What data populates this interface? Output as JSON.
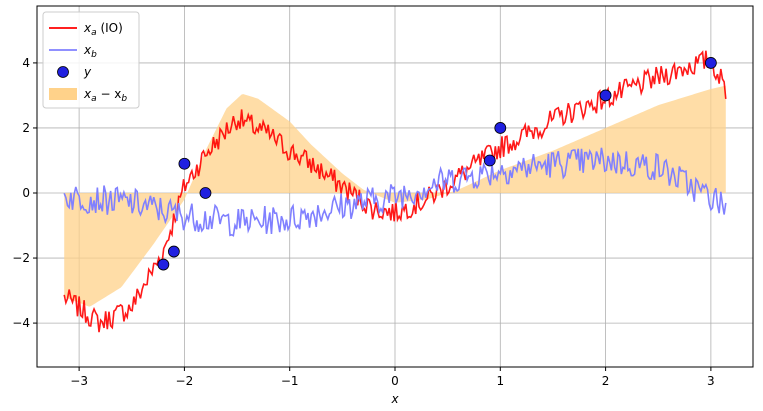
{
  "chart_data": {
    "type": "line",
    "xlabel": "x",
    "ylabel": "",
    "xlim": [
      -3.4,
      3.4
    ],
    "ylim": [
      -5.35,
      5.75
    ],
    "xticks": [
      -3,
      -2,
      -1,
      0,
      1,
      2,
      3
    ],
    "xtick_labels": [
      "−3",
      "−2",
      "−1",
      "0",
      "1",
      "2",
      "3"
    ],
    "yticks": [
      -4,
      -2,
      0,
      2,
      4
    ],
    "ytick_labels": [
      "−4",
      "−2",
      "0",
      "2",
      "4"
    ],
    "grid": true,
    "legend_placement": "top-left",
    "x_range": [
      -3.14159,
      3.14159
    ],
    "series": [
      {
        "name": "xa (IO)",
        "legend_main": "x",
        "legend_sub": "a",
        "legend_suffix": " (IO)",
        "color": "#ff0000",
        "kind": "line",
        "description_points": [
          [
            -3.14,
            -3.2
          ],
          [
            -2.8,
            -4.0
          ],
          [
            -2.5,
            -3.5
          ],
          [
            -2.2,
            -1.8
          ],
          [
            -2.0,
            0.2
          ],
          [
            -1.8,
            1.2
          ],
          [
            -1.5,
            2.3
          ],
          [
            -1.2,
            1.8
          ],
          [
            -1.0,
            1.3
          ],
          [
            -0.8,
            0.9
          ],
          [
            -0.5,
            0.2
          ],
          [
            -0.2,
            -0.5
          ],
          [
            0.0,
            -0.6
          ],
          [
            0.3,
            -0.2
          ],
          [
            0.6,
            0.5
          ],
          [
            1.0,
            1.4
          ],
          [
            1.3,
            1.9
          ],
          [
            1.6,
            2.4
          ],
          [
            2.0,
            2.9
          ],
          [
            2.3,
            3.3
          ],
          [
            2.7,
            3.8
          ],
          [
            3.0,
            4.1
          ],
          [
            3.14,
            3.2
          ]
        ],
        "noise_amp": 0.35
      },
      {
        "name": "xb",
        "legend_main": "x",
        "legend_sub": "b",
        "legend_suffix": "",
        "color": "#8080ff",
        "kind": "line",
        "description_points": [
          [
            -3.14,
            -0.1
          ],
          [
            -2.5,
            -0.3
          ],
          [
            -2.0,
            -0.7
          ],
          [
            -1.5,
            -0.9
          ],
          [
            -1.0,
            -0.8
          ],
          [
            -0.5,
            -0.4
          ],
          [
            0.0,
            -0.1
          ],
          [
            0.5,
            0.4
          ],
          [
            1.0,
            0.7
          ],
          [
            1.5,
            0.9
          ],
          [
            2.0,
            1.0
          ],
          [
            2.5,
            0.8
          ],
          [
            3.14,
            -0.4
          ]
        ],
        "noise_amp": 0.45
      },
      {
        "name": "y",
        "legend_main": "y",
        "legend_sub": "",
        "legend_suffix": "",
        "color": "#2020e0",
        "kind": "scatter",
        "points": [
          [
            -2.2,
            -2.2
          ],
          [
            -2.1,
            -1.8
          ],
          [
            -2.0,
            0.9
          ],
          [
            -1.8,
            0.0
          ],
          [
            0.9,
            1.0
          ],
          [
            1.0,
            2.0
          ],
          [
            2.0,
            3.0
          ],
          [
            3.0,
            4.0
          ]
        ]
      },
      {
        "name": "xa − xb",
        "legend_main": "x",
        "legend_sub": "a",
        "legend_suffix": " − x",
        "legend_sub2": "b",
        "color": "#ffd28a",
        "kind": "area",
        "description_points": [
          [
            -3.14,
            -3.2
          ],
          [
            -2.9,
            -3.5
          ],
          [
            -2.6,
            -2.9
          ],
          [
            -2.3,
            -1.6
          ],
          [
            -2.0,
            -0.2
          ],
          [
            -1.8,
            1.3
          ],
          [
            -1.6,
            2.6
          ],
          [
            -1.45,
            3.05
          ],
          [
            -1.3,
            2.9
          ],
          [
            -1.0,
            2.2
          ],
          [
            -0.8,
            1.5
          ],
          [
            -0.5,
            0.6
          ],
          [
            -0.3,
            0.1
          ],
          [
            0.0,
            -0.3
          ],
          [
            0.3,
            -0.2
          ],
          [
            0.6,
            0.1
          ],
          [
            1.0,
            0.7
          ],
          [
            1.5,
            1.3
          ],
          [
            2.0,
            2.0
          ],
          [
            2.5,
            2.7
          ],
          [
            3.0,
            3.2
          ],
          [
            3.14,
            3.3
          ]
        ]
      }
    ]
  }
}
